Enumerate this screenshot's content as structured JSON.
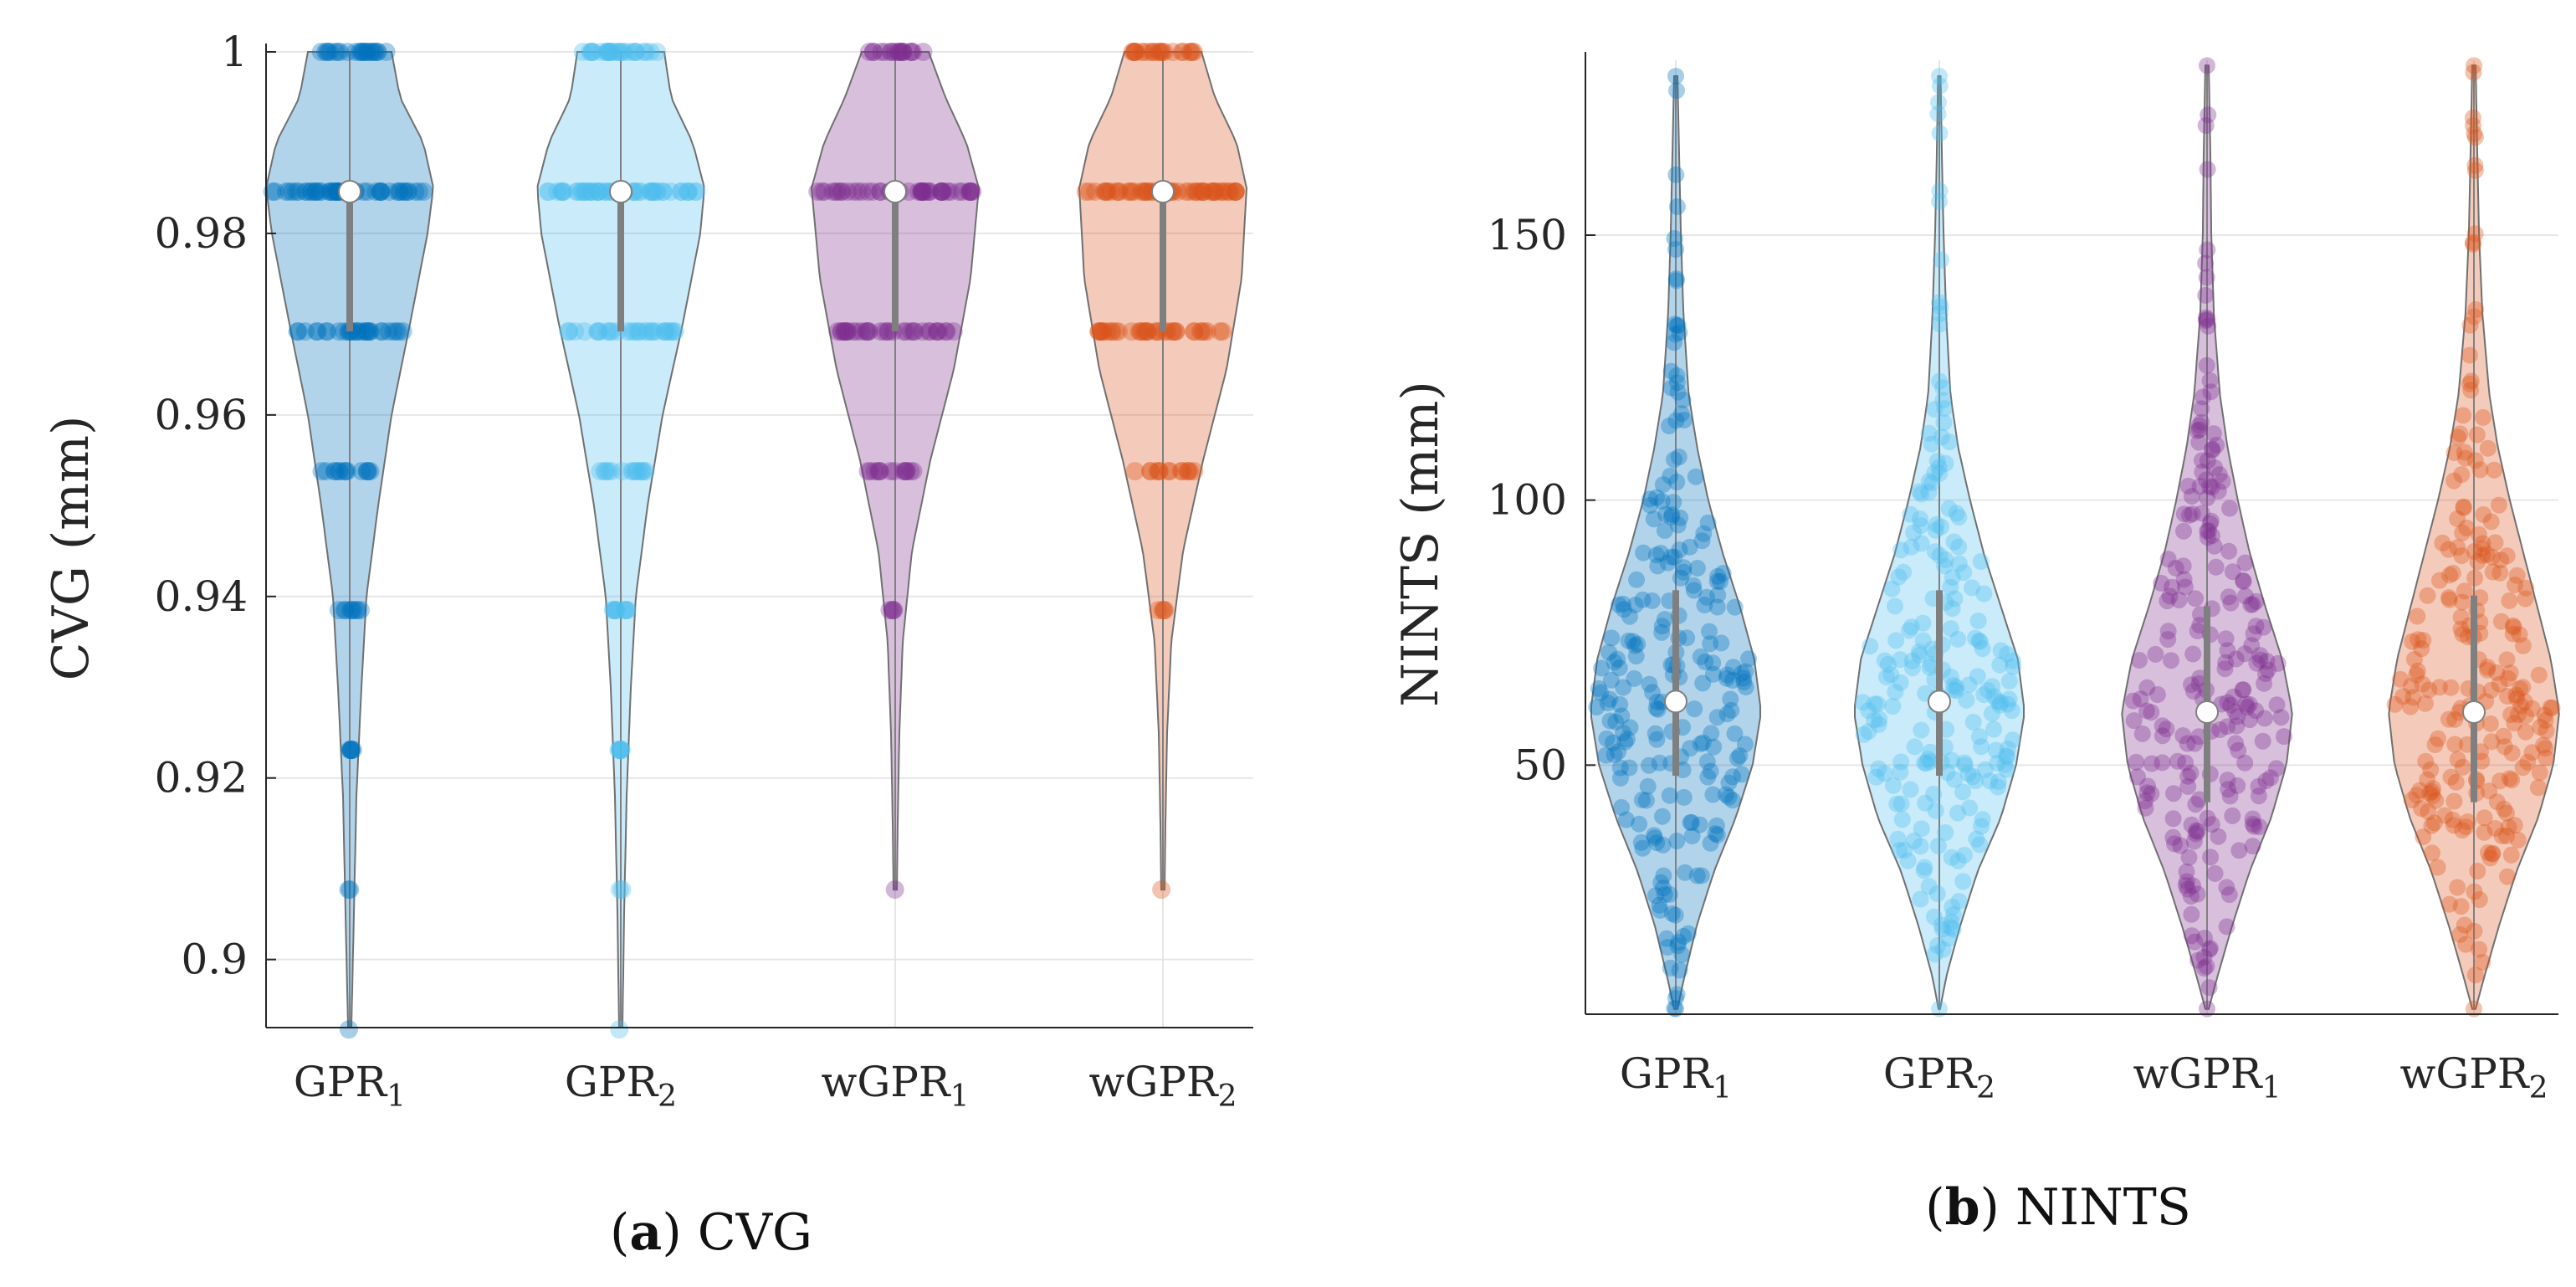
{
  "chart_data": [
    {
      "type": "violin",
      "title": "CVG",
      "caption_label": "a",
      "caption_text": " CVG",
      "ylabel": "CVG (mm)",
      "xlabel": "",
      "ylim": [
        0.8925,
        1.0
      ],
      "yticks": [
        0.9,
        0.92,
        0.94,
        0.96,
        0.98,
        1
      ],
      "ytick_labels": [
        "0.9",
        "0.92",
        "0.94",
        "0.96",
        "0.98",
        "1"
      ],
      "grid": true,
      "categories": [
        {
          "base": "GPR",
          "sub": "1"
        },
        {
          "base": "GPR",
          "sub": "2"
        },
        {
          "base": "wGPR",
          "sub": "1"
        },
        {
          "base": "wGPR",
          "sub": "2"
        }
      ],
      "series": [
        {
          "name": "GPR1",
          "color": "#0072BD",
          "median": 0.9846,
          "q1": 0.9692,
          "q3": 0.9846,
          "levels": [
            [
              1.0,
              24
            ],
            [
              0.9846,
              50
            ],
            [
              0.9692,
              30
            ],
            [
              0.9538,
              14
            ],
            [
              0.9385,
              9
            ],
            [
              0.9231,
              6
            ],
            [
              0.9077,
              2
            ],
            [
              0.8923,
              1
            ]
          ],
          "density": [
            [
              0.8925,
              0.02
            ],
            [
              0.905,
              0.05
            ],
            [
              0.918,
              0.08
            ],
            [
              0.93,
              0.14
            ],
            [
              0.94,
              0.2
            ],
            [
              0.95,
              0.34
            ],
            [
              0.96,
              0.5
            ],
            [
              0.97,
              0.72
            ],
            [
              0.98,
              0.93
            ],
            [
              0.985,
              1.0
            ],
            [
              0.99,
              0.88
            ],
            [
              0.995,
              0.6
            ],
            [
              1.0,
              0.5
            ]
          ]
        },
        {
          "name": "GPR2",
          "color": "#4DBEEE",
          "median": 0.9846,
          "q1": 0.9692,
          "q3": 0.9846,
          "levels": [
            [
              1.0,
              26
            ],
            [
              0.9846,
              52
            ],
            [
              0.9692,
              28
            ],
            [
              0.9538,
              14
            ],
            [
              0.9385,
              9
            ],
            [
              0.9231,
              6
            ],
            [
              0.9077,
              2
            ],
            [
              0.8923,
              1
            ]
          ],
          "density": [
            [
              0.8925,
              0.02
            ],
            [
              0.905,
              0.04
            ],
            [
              0.918,
              0.07
            ],
            [
              0.93,
              0.12
            ],
            [
              0.94,
              0.18
            ],
            [
              0.95,
              0.32
            ],
            [
              0.96,
              0.5
            ],
            [
              0.97,
              0.74
            ],
            [
              0.98,
              0.95
            ],
            [
              0.985,
              1.0
            ],
            [
              0.99,
              0.86
            ],
            [
              0.995,
              0.6
            ],
            [
              1.0,
              0.52
            ]
          ]
        },
        {
          "name": "wGPR1",
          "color": "#7E2F8E",
          "median": 0.9846,
          "q1": 0.9692,
          "q3": 0.9846,
          "levels": [
            [
              1.0,
              18
            ],
            [
              0.9846,
              48
            ],
            [
              0.9692,
              34
            ],
            [
              0.9538,
              14
            ],
            [
              0.9385,
              4
            ],
            [
              0.9077,
              1
            ]
          ],
          "density": [
            [
              0.9077,
              0.02
            ],
            [
              0.915,
              0.03
            ],
            [
              0.925,
              0.05
            ],
            [
              0.935,
              0.09
            ],
            [
              0.945,
              0.2
            ],
            [
              0.955,
              0.42
            ],
            [
              0.965,
              0.7
            ],
            [
              0.975,
              0.9
            ],
            [
              0.985,
              1.0
            ],
            [
              0.99,
              0.85
            ],
            [
              0.995,
              0.6
            ],
            [
              1.0,
              0.4
            ]
          ]
        },
        {
          "name": "wGPR2",
          "color": "#D95319",
          "median": 0.9846,
          "q1": 0.9692,
          "q3": 0.9846,
          "levels": [
            [
              1.0,
              22
            ],
            [
              0.9846,
              56
            ],
            [
              0.9692,
              36
            ],
            [
              0.9538,
              14
            ],
            [
              0.9385,
              4
            ],
            [
              0.9077,
              1
            ]
          ],
          "density": [
            [
              0.9077,
              0.02
            ],
            [
              0.915,
              0.03
            ],
            [
              0.925,
              0.05
            ],
            [
              0.935,
              0.1
            ],
            [
              0.945,
              0.24
            ],
            [
              0.955,
              0.48
            ],
            [
              0.965,
              0.76
            ],
            [
              0.975,
              0.94
            ],
            [
              0.985,
              1.0
            ],
            [
              0.99,
              0.88
            ],
            [
              0.995,
              0.62
            ],
            [
              1.0,
              0.46
            ]
          ]
        }
      ]
    },
    {
      "type": "violin",
      "title": "NINTS",
      "caption_label": "b",
      "caption_text": " NINTS",
      "ylabel": "NINTS (mm)",
      "xlabel": "",
      "ylim": [
        3,
        183
      ],
      "yticks": [
        50,
        100,
        150
      ],
      "ytick_labels": [
        "50",
        "100",
        "150"
      ],
      "grid": true,
      "categories": [
        {
          "base": "GPR",
          "sub": "1"
        },
        {
          "base": "GPR",
          "sub": "2"
        },
        {
          "base": "wGPR",
          "sub": "1"
        },
        {
          "base": "wGPR",
          "sub": "2"
        }
      ],
      "series": [
        {
          "name": "GPR1",
          "color": "#0072BD",
          "median": 62,
          "q1": 48,
          "q3": 83,
          "min": 4,
          "max": 180,
          "points": 230,
          "density": [
            [
              4,
              0.02
            ],
            [
              10,
              0.1
            ],
            [
              20,
              0.25
            ],
            [
              30,
              0.45
            ],
            [
              40,
              0.7
            ],
            [
              50,
              0.9
            ],
            [
              60,
              1.0
            ],
            [
              70,
              0.92
            ],
            [
              80,
              0.75
            ],
            [
              90,
              0.55
            ],
            [
              100,
              0.38
            ],
            [
              110,
              0.25
            ],
            [
              120,
              0.15
            ],
            [
              135,
              0.09
            ],
            [
              150,
              0.06
            ],
            [
              165,
              0.04
            ],
            [
              180,
              0.02
            ]
          ]
        },
        {
          "name": "GPR2",
          "color": "#4DBEEE",
          "median": 62,
          "q1": 48,
          "q3": 83,
          "min": 4,
          "max": 180,
          "points": 220,
          "density": [
            [
              4,
              0.01
            ],
            [
              10,
              0.08
            ],
            [
              20,
              0.25
            ],
            [
              30,
              0.45
            ],
            [
              40,
              0.72
            ],
            [
              50,
              0.9
            ],
            [
              60,
              1.0
            ],
            [
              70,
              0.92
            ],
            [
              80,
              0.72
            ],
            [
              90,
              0.52
            ],
            [
              100,
              0.36
            ],
            [
              110,
              0.22
            ],
            [
              120,
              0.13
            ],
            [
              135,
              0.08
            ],
            [
              150,
              0.05
            ],
            [
              165,
              0.03
            ],
            [
              180,
              0.015
            ]
          ]
        },
        {
          "name": "wGPR1",
          "color": "#7E2F8E",
          "median": 60,
          "q1": 43,
          "q3": 80,
          "min": 4,
          "max": 182,
          "points": 220,
          "density": [
            [
              4,
              0.02
            ],
            [
              10,
              0.12
            ],
            [
              20,
              0.3
            ],
            [
              30,
              0.5
            ],
            [
              40,
              0.75
            ],
            [
              50,
              0.93
            ],
            [
              60,
              1.0
            ],
            [
              70,
              0.88
            ],
            [
              80,
              0.68
            ],
            [
              90,
              0.5
            ],
            [
              100,
              0.36
            ],
            [
              110,
              0.24
            ],
            [
              120,
              0.15
            ],
            [
              135,
              0.08
            ],
            [
              150,
              0.05
            ],
            [
              165,
              0.04
            ],
            [
              182,
              0.02
            ]
          ]
        },
        {
          "name": "wGPR2",
          "color": "#D95319",
          "median": 60,
          "q1": 43,
          "q3": 82,
          "min": 4,
          "max": 182,
          "points": 230,
          "density": [
            [
              4,
              0.02
            ],
            [
              10,
              0.12
            ],
            [
              20,
              0.3
            ],
            [
              30,
              0.5
            ],
            [
              40,
              0.75
            ],
            [
              50,
              0.93
            ],
            [
              60,
              1.0
            ],
            [
              70,
              0.9
            ],
            [
              80,
              0.74
            ],
            [
              90,
              0.58
            ],
            [
              100,
              0.42
            ],
            [
              110,
              0.28
            ],
            [
              120,
              0.18
            ],
            [
              135,
              0.1
            ],
            [
              150,
              0.06
            ],
            [
              165,
              0.04
            ],
            [
              182,
              0.02
            ]
          ]
        }
      ]
    }
  ]
}
